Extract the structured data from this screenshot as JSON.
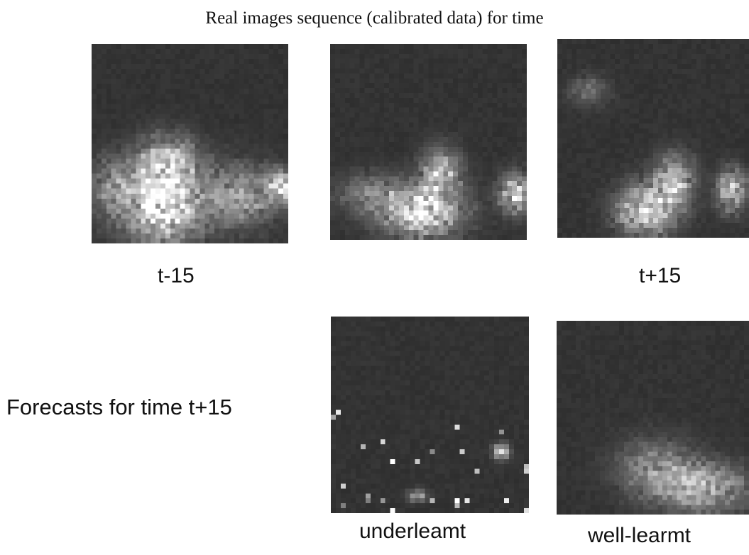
{
  "title": "Real images sequence (calibrated data) for time",
  "panels": {
    "real_t_minus_15": {
      "caption": "t-15"
    },
    "real_t": {
      "caption": ""
    },
    "real_t_plus_15": {
      "caption": "t+15"
    },
    "forecast_underlearnt": {
      "caption": "underleamt"
    },
    "forecast_welllearnt": {
      "caption": "well-learmt"
    }
  },
  "forecast_row_label": "Forecasts for time t+15",
  "colors": {
    "background": "#ffffff",
    "image_background": "#2f2f2f",
    "text": "#111111"
  }
}
